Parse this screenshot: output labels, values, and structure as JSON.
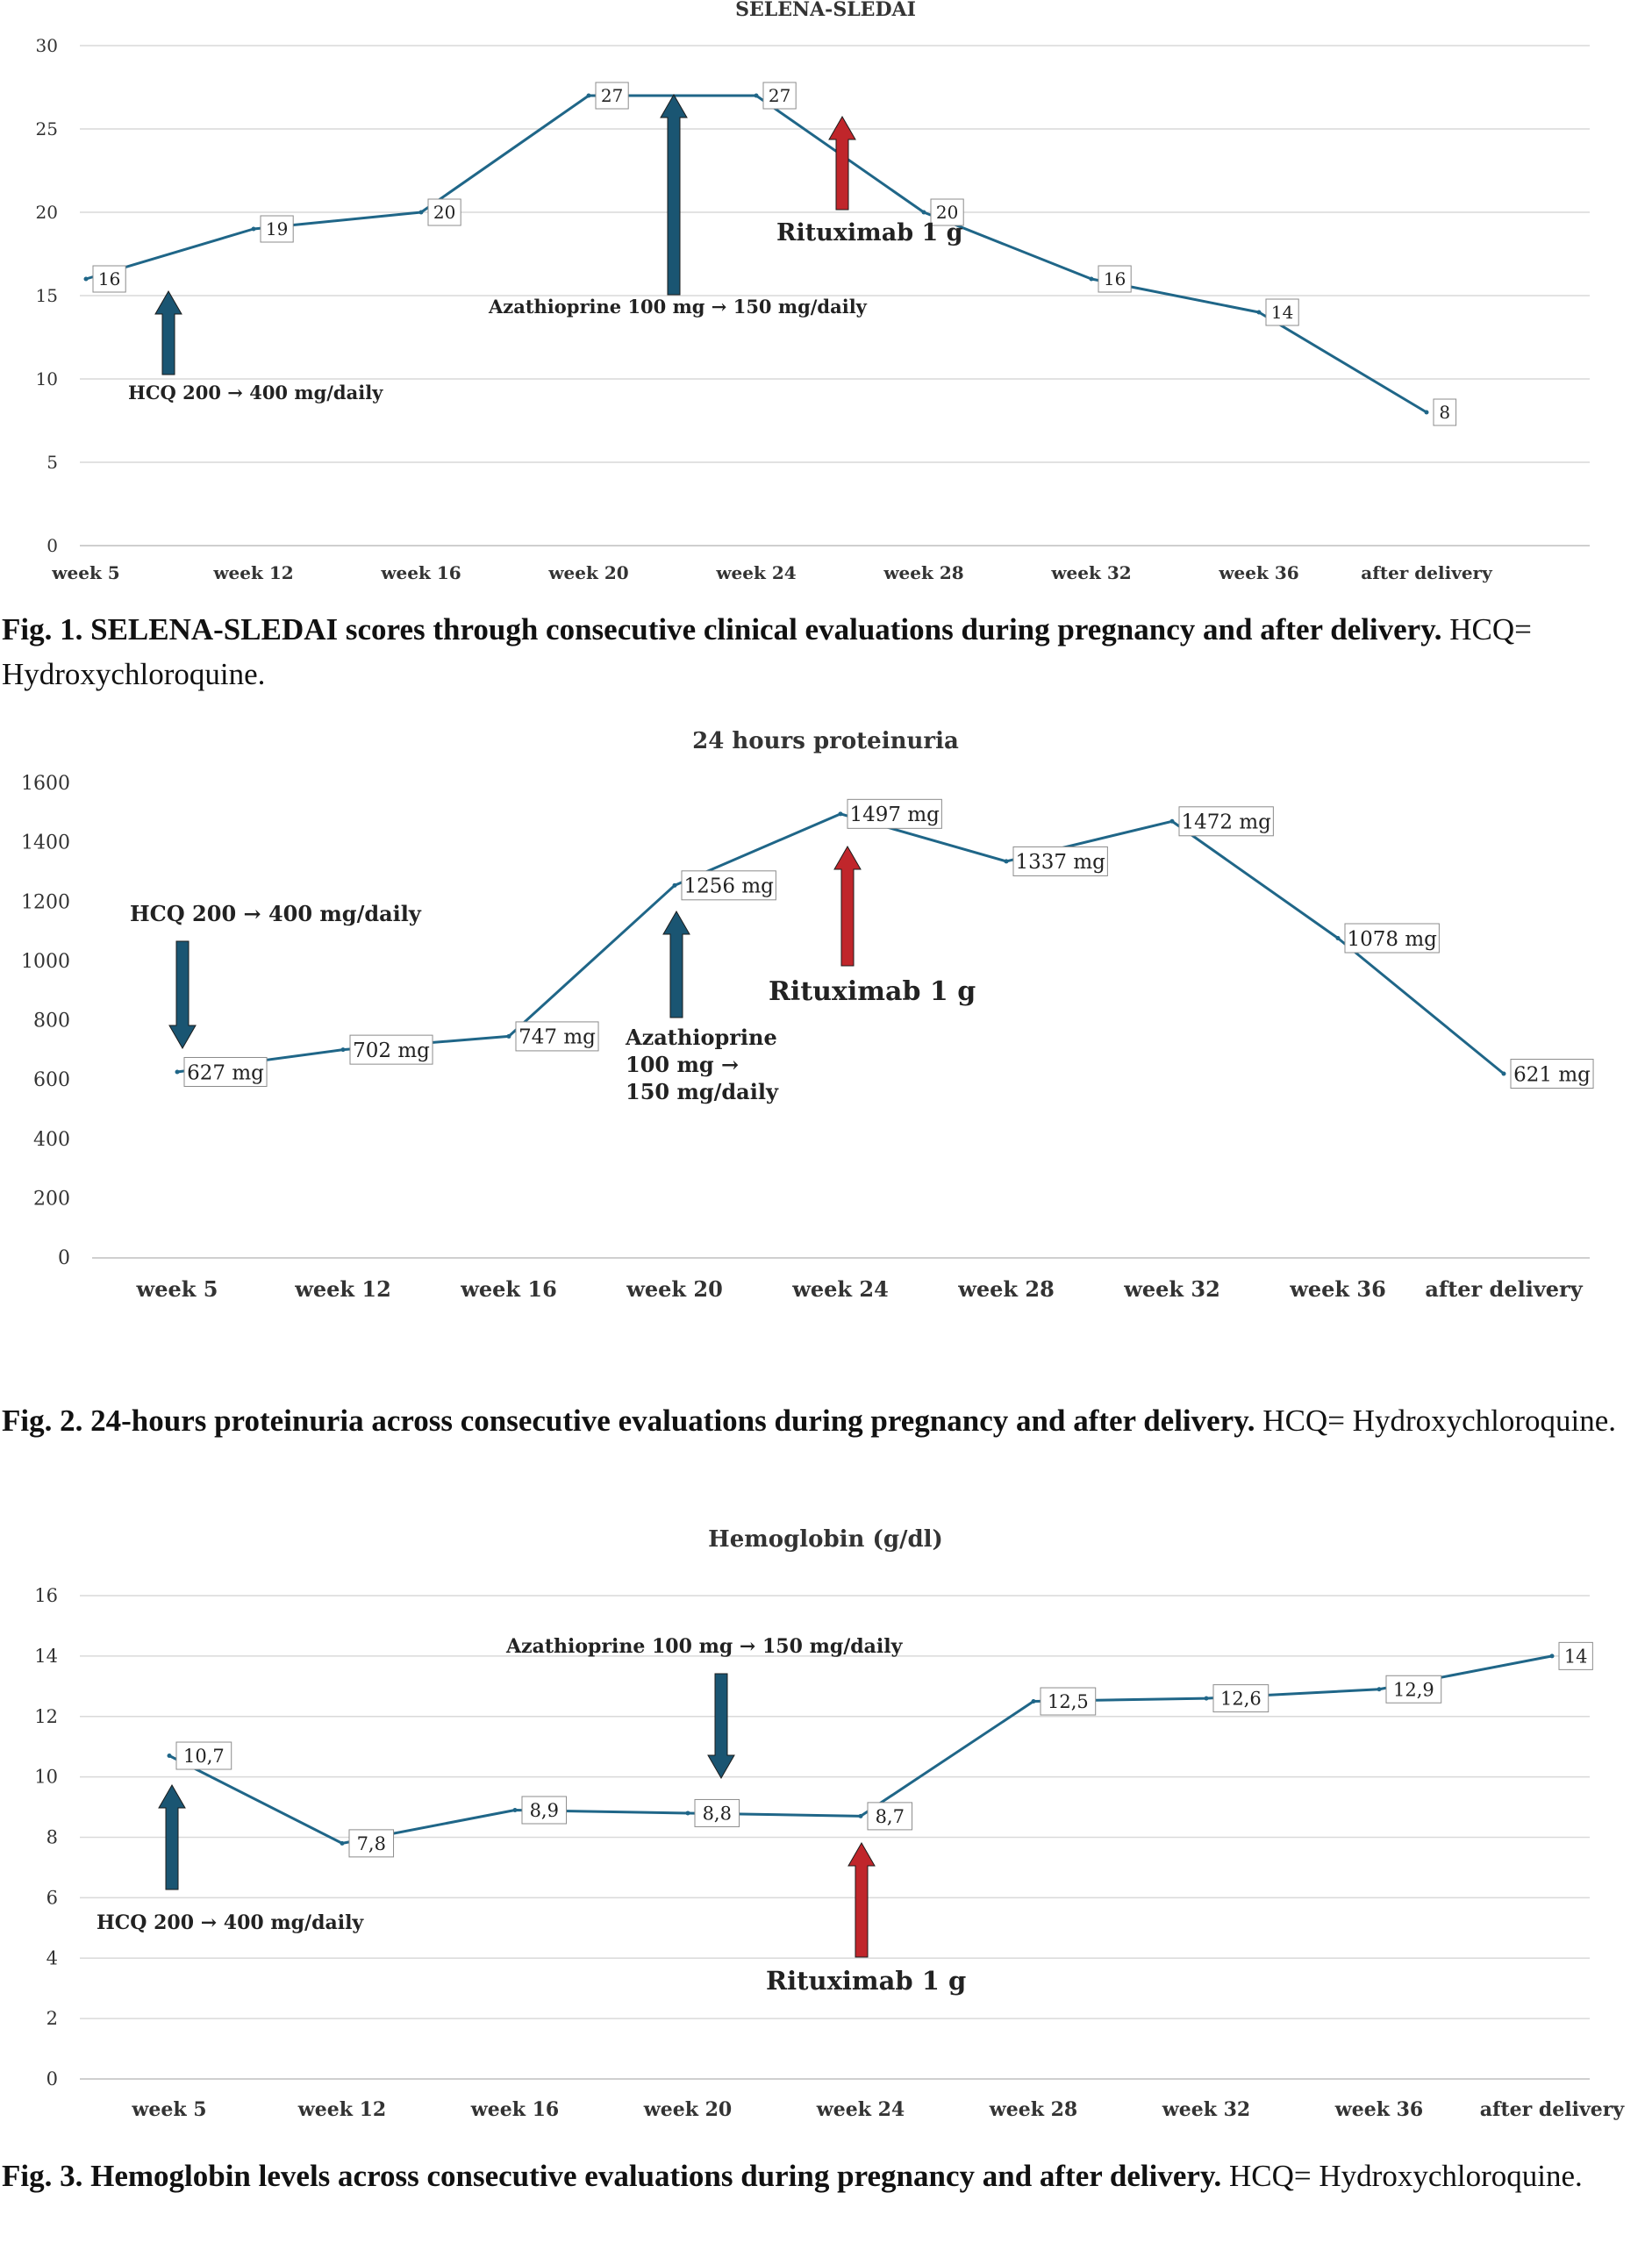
{
  "palette": {
    "line": "#1f6688",
    "arrow_blue": "#1a5572",
    "arrow_red": "#c0262b",
    "grid": "#d9d9d9",
    "text": "#333333"
  },
  "chart_data": [
    {
      "type": "line",
      "title": "SELENA-SLEDAI",
      "categories": [
        "week 5",
        "week 12",
        "week 16",
        "week 20",
        "week 24",
        "week 28",
        "week 32",
        "week 36",
        "after delivery"
      ],
      "series": [
        {
          "values": [
            16,
            19,
            20,
            27,
            27,
            20,
            16,
            14,
            8
          ]
        }
      ],
      "data_labels": [
        "16",
        "19",
        "20",
        "27",
        "27",
        "20",
        "16",
        "14",
        "8"
      ],
      "ylim": [
        0,
        30
      ],
      "yticks": [
        "0",
        "5",
        "10",
        "15",
        "20",
        "25",
        "30"
      ],
      "grid": true,
      "annotations": [
        {
          "text": "HCQ 200 → 400 mg/daily",
          "category": "week 5",
          "arrow": "up",
          "color": "blue"
        },
        {
          "text": "Azathioprine 100 mg → 150 mg/daily",
          "category": "week 20",
          "arrow": "up",
          "color": "blue"
        },
        {
          "text": "Rituximab 1 g",
          "category": "week 24",
          "arrow": "up",
          "color": "red"
        }
      ]
    },
    {
      "type": "line",
      "title": "24 hours proteinuria",
      "categories": [
        "week 5",
        "week 12",
        "week 16",
        "week 20",
        "week 24",
        "week 28",
        "week 32",
        "week 36",
        "after delivery"
      ],
      "series": [
        {
          "values": [
            627,
            702,
            747,
            1256,
            1497,
            1337,
            1472,
            1078,
            621
          ]
        }
      ],
      "data_labels": [
        "627 mg",
        "702 mg",
        "747 mg",
        "1256 mg",
        "1497 mg",
        "1337 mg",
        "1472 mg",
        "1078 mg",
        "621 mg"
      ],
      "ylim": [
        0,
        1600
      ],
      "yticks": [
        "0",
        "200",
        "400",
        "600",
        "800",
        "1000",
        "1200",
        "1400",
        "1600"
      ],
      "grid": false,
      "annotations": [
        {
          "text": "HCQ 200 → 400 mg/daily",
          "category": "week 5",
          "arrow": "down",
          "color": "blue"
        },
        {
          "lines": [
            "Azathioprine",
            "100 mg →",
            "150 mg/daily"
          ],
          "category": "week 20",
          "arrow": "up",
          "color": "blue"
        },
        {
          "text": "Rituximab 1 g",
          "category": "week 24",
          "arrow": "up",
          "color": "red"
        }
      ]
    },
    {
      "type": "line",
      "title": "Hemoglobin (g/dl)",
      "categories": [
        "week 5",
        "week 12",
        "week 16",
        "week 20",
        "week 24",
        "week 28",
        "week 32",
        "week 36",
        "after delivery"
      ],
      "series": [
        {
          "values": [
            10.7,
            7.8,
            8.9,
            8.8,
            8.7,
            12.5,
            12.6,
            12.9,
            14
          ]
        }
      ],
      "data_labels": [
        "10,7",
        "7,8",
        "8,9",
        "8,8",
        "8,7",
        "12,5",
        "12,6",
        "12,9",
        "14"
      ],
      "ylim": [
        0,
        16
      ],
      "yticks": [
        "0",
        "2",
        "4",
        "6",
        "8",
        "10",
        "12",
        "14",
        "16"
      ],
      "grid": true,
      "annotations": [
        {
          "text": "HCQ 200 → 400 mg/daily",
          "category": "week 5",
          "arrow": "up",
          "color": "blue"
        },
        {
          "text": "Azathioprine 100 mg → 150 mg/daily",
          "category": "week 20",
          "arrow": "down",
          "color": "blue"
        },
        {
          "text": "Rituximab 1 g",
          "category": "week 24",
          "arrow": "up",
          "color": "red"
        }
      ]
    }
  ],
  "captions": [
    {
      "bold": "Fig. 1. SELENA-SLEDAI scores through consecutive clinical evaluations during pregnancy and after delivery.",
      "normal": " HCQ= Hydroxychloroquine."
    },
    {
      "bold": "Fig. 2. 24-hours proteinuria across consecutive evaluations during pregnancy and after delivery.",
      "normal": " HCQ= Hydroxychloroquine."
    },
    {
      "bold": "Fig. 3. Hemoglobin levels across consecutive evaluations during pregnancy and after delivery.",
      "normal": "  HCQ= Hydroxychloroquine."
    }
  ]
}
